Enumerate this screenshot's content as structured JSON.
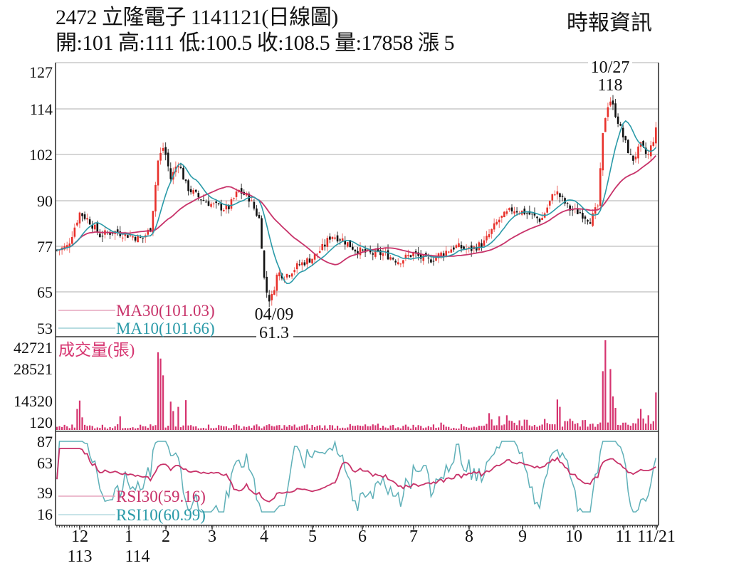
{
  "header": {
    "title": "2472  立隆電子 1141121(日線圖)",
    "quote": "開:101 高:111 低:100.5 收:108.5 量:17858 漲 5",
    "source": "時報資訊"
  },
  "colors": {
    "up": "#e8302a",
    "down": "#111111",
    "ma30": "#c8336a",
    "ma10": "#2a9aa8",
    "volume": "#d6336f",
    "rsi30": "#c8336a",
    "rsi10": "#5fb0b8",
    "grid": "#c8c8c8"
  },
  "chart_data": [
    {
      "type": "candlestick",
      "title": "2472 立隆電子 1141121(日線圖)",
      "stock_code": "2472",
      "stock_name": "立隆電子",
      "date": "1141121",
      "latest": {
        "open": 101,
        "high": 111,
        "low": 100.5,
        "close": 108.5,
        "volume": 17858,
        "change": 5
      },
      "yticks": [
        127,
        114,
        102,
        90,
        77,
        65,
        53
      ],
      "ylim": [
        53,
        127
      ],
      "grid": true,
      "annotations": [
        {
          "label": "10/27",
          "value": "118",
          "type": "high"
        },
        {
          "label": "04/09",
          "value": "61.3",
          "type": "low"
        }
      ],
      "legend": [
        {
          "name": "MA30",
          "value": "101.03"
        },
        {
          "name": "MA10",
          "value": "101.66"
        }
      ],
      "approx_close_path": {
        "months": [
          "12",
          "1",
          "2",
          "3",
          "4",
          "5",
          "6",
          "7",
          "8",
          "9",
          "10",
          "11",
          "11/21"
        ],
        "values": [
          78,
          82,
          100,
          90,
          64,
          78,
          76,
          75,
          80,
          88,
          87,
          112,
          108.5
        ]
      },
      "approx_ma30_path": [
        74,
        78,
        82,
        92,
        88,
        72,
        76,
        75,
        76,
        82,
        86,
        100,
        101.03
      ],
      "approx_ma10_path": [
        74,
        84,
        96,
        90,
        66,
        76,
        75,
        75,
        78,
        87,
        86,
        112,
        101.66
      ]
    },
    {
      "type": "bar",
      "title": "成交量(張)",
      "yticks": [
        42721,
        28521,
        14320,
        120
      ],
      "ylim": [
        120,
        42721
      ],
      "peaks": [
        {
          "month": "12",
          "value": 14320
        },
        {
          "month": "2",
          "value": 37000
        },
        {
          "month": "10",
          "value": 14500
        },
        {
          "month": "10/27",
          "value": 42721
        },
        {
          "month": "11/21",
          "value": 17858
        }
      ]
    },
    {
      "type": "line",
      "title": "RSI",
      "yticks": [
        87,
        63,
        39,
        16
      ],
      "ylim": [
        16,
        87
      ],
      "series": [
        {
          "name": "RSI30",
          "latest": 59.16
        },
        {
          "name": "RSI10",
          "latest": 60.99
        }
      ],
      "legend": [
        {
          "name": "RSI30",
          "value": "59.16"
        },
        {
          "name": "RSI10",
          "value": "60.99"
        }
      ]
    }
  ],
  "price_axis": {
    "ticks": [
      "127",
      "114",
      "102",
      "90",
      "77",
      "65",
      "53"
    ]
  },
  "volume_axis": {
    "title": "成交量(張)",
    "ticks": [
      "42721",
      "28521",
      "14320",
      "120"
    ]
  },
  "rsi_axis": {
    "ticks": [
      "87",
      "63",
      "39",
      "16"
    ]
  },
  "legend": {
    "ma30": "MA30(101.03)",
    "ma10": "MA10(101.66)",
    "rsi30": "RSI30(59.16)",
    "rsi10": "RSI10(60.99)"
  },
  "annotations": {
    "high_date": "10/27",
    "high_value": "118",
    "low_date": "04/09",
    "low_value": "61.3"
  },
  "x_axis": {
    "months": [
      "12",
      "1",
      "2",
      "3",
      "4",
      "5",
      "6",
      "7",
      "8",
      "9",
      "10",
      "11",
      "11/21"
    ],
    "years": [
      "113",
      "114"
    ]
  }
}
